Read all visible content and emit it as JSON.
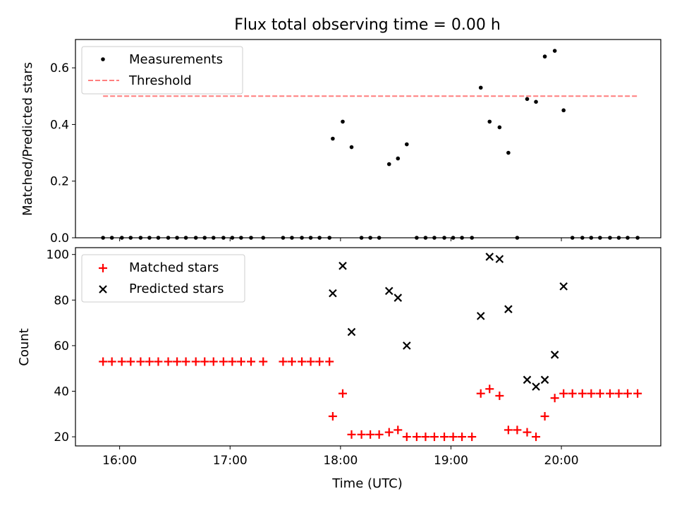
{
  "chart_data": {
    "type": "scatter",
    "title": "Flux total observing time = 0.00 h",
    "xlabel": "Time (UTC)",
    "xlim": [
      15.6,
      20.9
    ],
    "xticks": [
      "16:00",
      "17:00",
      "18:00",
      "19:00",
      "20:00"
    ],
    "xtick_values": [
      16,
      17,
      18,
      19,
      20
    ],
    "top": {
      "ylabel": "Matched/Predicted stars",
      "ylim": [
        0,
        0.7
      ],
      "yticks": [
        "0.0",
        "0.2",
        "0.4",
        "0.6"
      ],
      "ytick_values": [
        0,
        0.2,
        0.4,
        0.6
      ],
      "legend_location": "upper-left",
      "measurements": {
        "name": "Measurements",
        "x": [
          15.85,
          15.93,
          16.02,
          16.1,
          16.19,
          16.27,
          16.35,
          16.44,
          16.52,
          16.6,
          16.69,
          16.77,
          16.85,
          16.94,
          17.02,
          17.1,
          17.19,
          17.3,
          17.48,
          17.56,
          17.65,
          17.73,
          17.81,
          17.9,
          17.93,
          18.02,
          18.1,
          18.19,
          18.27,
          18.35,
          18.44,
          18.52,
          18.6,
          18.69,
          18.77,
          18.85,
          18.94,
          19.02,
          19.1,
          19.19,
          19.27,
          19.35,
          19.44,
          19.52,
          19.6,
          19.69,
          19.77,
          19.85,
          19.94,
          20.02,
          20.1,
          20.19,
          20.27,
          20.35,
          20.44,
          20.52,
          20.6,
          20.69
        ],
        "y": [
          0,
          0,
          0,
          0,
          0,
          0,
          0,
          0,
          0,
          0,
          0,
          0,
          0,
          0,
          0,
          0,
          0,
          0,
          0,
          0,
          0,
          0,
          0,
          0,
          0.35,
          0.41,
          0.32,
          0,
          0,
          0,
          0.26,
          0.28,
          0.33,
          0,
          0,
          0,
          0,
          0,
          0,
          0,
          0.53,
          0.41,
          0.39,
          0.3,
          0,
          0.49,
          0.48,
          0.64,
          0.66,
          0.45,
          0,
          0,
          0,
          0,
          0,
          0,
          0,
          0
        ]
      },
      "threshold": {
        "name": "Threshold",
        "value": 0.5,
        "x_range": [
          15.85,
          20.69
        ],
        "color": "#ff7f7f"
      }
    },
    "bottom": {
      "ylabel": "Count",
      "ylim": [
        16,
        103
      ],
      "yticks": [
        "20",
        "40",
        "60",
        "80",
        "100"
      ],
      "ytick_values": [
        20,
        40,
        60,
        80,
        100
      ],
      "legend_location": "upper-left",
      "matched": {
        "name": "Matched stars",
        "color": "#ff0000",
        "x": [
          15.85,
          15.93,
          16.02,
          16.1,
          16.19,
          16.27,
          16.35,
          16.44,
          16.52,
          16.6,
          16.69,
          16.77,
          16.85,
          16.94,
          17.02,
          17.1,
          17.19,
          17.3,
          17.48,
          17.56,
          17.65,
          17.73,
          17.81,
          17.9,
          17.93,
          18.02,
          18.1,
          18.19,
          18.27,
          18.35,
          18.44,
          18.52,
          18.6,
          18.69,
          18.77,
          18.85,
          18.94,
          19.02,
          19.1,
          19.19,
          19.27,
          19.35,
          19.44,
          19.52,
          19.6,
          19.69,
          19.77,
          19.85,
          19.94,
          20.02,
          20.1,
          20.19,
          20.27,
          20.35,
          20.44,
          20.52,
          20.6,
          20.69
        ],
        "y": [
          53,
          53,
          53,
          53,
          53,
          53,
          53,
          53,
          53,
          53,
          53,
          53,
          53,
          53,
          53,
          53,
          53,
          53,
          53,
          53,
          53,
          53,
          53,
          53,
          29,
          39,
          21,
          21,
          21,
          21,
          22,
          23,
          20,
          20,
          20,
          20,
          20,
          20,
          20,
          20,
          39,
          41,
          38,
          23,
          23,
          22,
          20,
          29,
          37,
          39,
          39,
          39,
          39,
          39,
          39,
          39,
          39,
          39
        ]
      },
      "predicted": {
        "name": "Predicted stars",
        "color": "#000000",
        "x": [
          17.93,
          18.02,
          18.1,
          18.44,
          18.52,
          18.6,
          19.27,
          19.35,
          19.44,
          19.52,
          19.69,
          19.77,
          19.85,
          19.94,
          20.02
        ],
        "y": [
          83,
          95,
          66,
          84,
          81,
          60,
          73,
          99,
          98,
          76,
          45,
          42,
          45,
          56,
          86
        ]
      }
    }
  }
}
